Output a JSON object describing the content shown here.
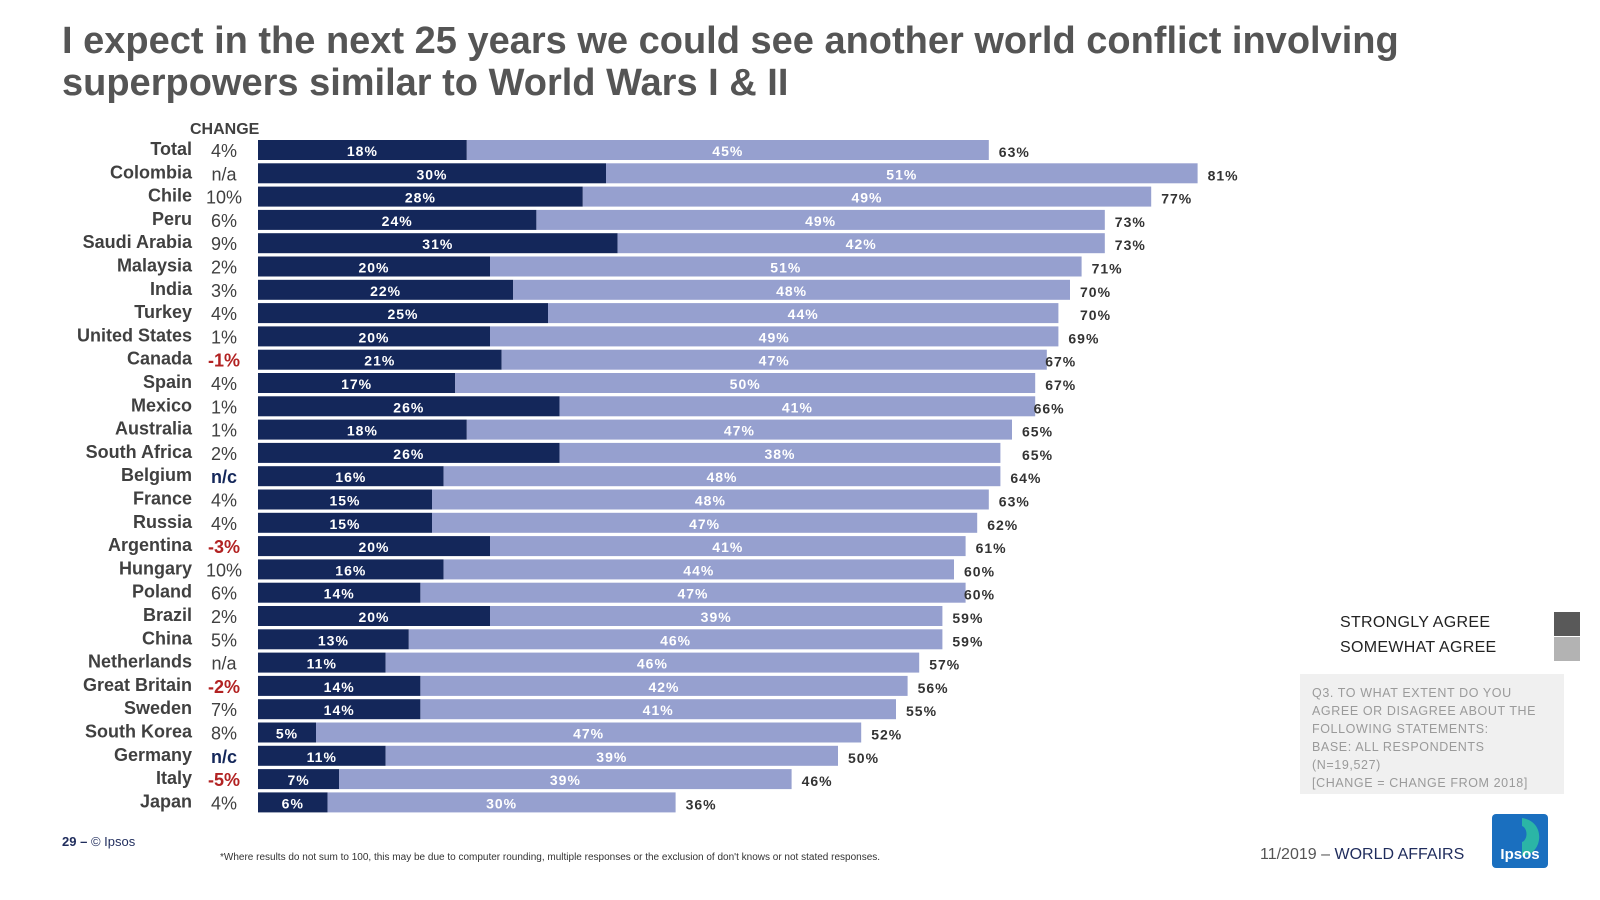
{
  "page": {
    "title": "I expect in the next 25 years we could see another world conflict involving superpowers similar to World Wars I & II",
    "change_header": "CHANGE",
    "legend": [
      {
        "label": "STRONGLY AGREE",
        "color": "#595959"
      },
      {
        "label": "SOMEWHAT AGREE",
        "color": "#b3b3b3"
      }
    ],
    "note_lines": [
      "Q3. TO WHAT EXTENT DO YOU",
      "AGREE OR DISAGREE ABOUT THE",
      "FOLLOWING STATEMENTS:",
      "BASE: ALL RESPONDENTS",
      "(N=19,527)",
      "[CHANGE = CHANGE FROM 2018]"
    ],
    "footer": {
      "page_number": "29",
      "separator": "–",
      "copyright": "© Ipsos",
      "footnote": "*Where results do not sum to 100, this may be due to computer rounding, multiple responses or the exclusion of don't knows or not stated responses.",
      "date": "11/2019",
      "date_separator": "–",
      "section": "WORLD AFFAIRS",
      "logo_text": "Ipsos"
    },
    "colors": {
      "strongly": "#14275a",
      "somewhat": "#96a0cf",
      "negative_change": "#b22222",
      "nc_change": "#14275a",
      "label": "#404040"
    }
  },
  "chart_data": {
    "type": "bar",
    "orientation": "horizontal",
    "stacked": true,
    "xlim": [
      0,
      100
    ],
    "categories": [
      "Total",
      "Colombia",
      "Chile",
      "Peru",
      "Saudi Arabia",
      "Malaysia",
      "India",
      "Turkey",
      "United States",
      "Canada",
      "Spain",
      "Mexico",
      "Australia",
      "South Africa",
      "Belgium",
      "France",
      "Russia",
      "Argentina",
      "Hungary",
      "Poland",
      "Brazil",
      "China",
      "Netherlands",
      "Great Britain",
      "Sweden",
      "South Korea",
      "Germany",
      "Italy",
      "Japan"
    ],
    "change": [
      "4%",
      "n/a",
      "10%",
      "6%",
      "9%",
      "2%",
      "3%",
      "4%",
      "1%",
      "-1%",
      "4%",
      "1%",
      "1%",
      "2%",
      "n/c",
      "4%",
      "4%",
      "-3%",
      "10%",
      "6%",
      "2%",
      "5%",
      "n/a",
      "-2%",
      "7%",
      "8%",
      "n/c",
      "-5%",
      "4%"
    ],
    "totals": [
      63,
      81,
      77,
      73,
      73,
      71,
      70,
      70,
      69,
      67,
      67,
      66,
      65,
      65,
      64,
      63,
      62,
      61,
      60,
      60,
      59,
      59,
      57,
      56,
      55,
      52,
      50,
      46,
      36
    ],
    "series": [
      {
        "name": "STRONGLY AGREE",
        "values": [
          18,
          30,
          28,
          24,
          31,
          20,
          22,
          25,
          20,
          21,
          17,
          26,
          18,
          26,
          16,
          15,
          15,
          20,
          16,
          14,
          20,
          13,
          11,
          14,
          14,
          5,
          11,
          7,
          6
        ]
      },
      {
        "name": "SOMEWHAT AGREE",
        "values": [
          45,
          51,
          49,
          49,
          42,
          51,
          48,
          44,
          49,
          47,
          50,
          41,
          47,
          38,
          48,
          48,
          47,
          41,
          44,
          47,
          39,
          46,
          46,
          42,
          41,
          47,
          39,
          39,
          30
        ]
      }
    ]
  }
}
